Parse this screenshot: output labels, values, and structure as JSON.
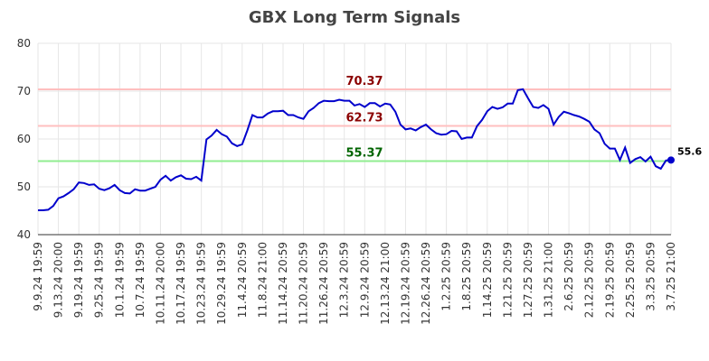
{
  "chart_data": {
    "type": "line",
    "title": "GBX Long Term Signals",
    "categories": [
      "9.9.24 19:59",
      null,
      null,
      null,
      "9.13.24 20:00",
      null,
      null,
      null,
      "9.19.24 19:59",
      null,
      null,
      null,
      "9.25.24 19:59",
      null,
      null,
      null,
      "10.1.24 19:59",
      null,
      null,
      null,
      "10.7.24 19:59",
      null,
      null,
      null,
      "10.11.24 20:00",
      null,
      null,
      null,
      "10.17.24 19:59",
      null,
      null,
      null,
      "10.23.24 19:59",
      null,
      null,
      null,
      "10.29.24 19:59",
      null,
      null,
      null,
      "11.4.24 20:59",
      null,
      null,
      null,
      "11.8.24 21:00",
      null,
      null,
      null,
      "11.14.24 20:59",
      null,
      null,
      null,
      "11.20.24 20:59",
      null,
      null,
      null,
      "11.26.24 20:59",
      null,
      null,
      null,
      "12.3.24 20:59",
      null,
      null,
      null,
      "12.9.24 20:59",
      null,
      null,
      null,
      "12.13.24 21:00",
      null,
      null,
      null,
      "12.19.24 20:59",
      null,
      null,
      null,
      "12.26.24 20:59",
      null,
      null,
      null,
      "1.2.25 20:59",
      null,
      null,
      null,
      "1.8.25 20:59",
      null,
      null,
      null,
      "1.14.25 20:59",
      null,
      null,
      null,
      "1.21.25 20:59",
      null,
      null,
      null,
      "1.27.25 20:59",
      null,
      null,
      null,
      "1.31.25 21:00",
      null,
      null,
      null,
      "2.6.25 20:59",
      null,
      null,
      null,
      "2.12.25 20:59",
      null,
      null,
      null,
      "2.19.25 20:59",
      null,
      null,
      null,
      "2.25.25 20:59",
      null,
      null,
      null,
      "3.3.25 20:59",
      null,
      null,
      null,
      "3.7.25 21:00"
    ],
    "series": [
      {
        "color": "#0000cc",
        "values": [
          45.1,
          45.1,
          45.2,
          46.0,
          47.6,
          48.0,
          48.7,
          49.5,
          50.9,
          50.8,
          50.4,
          50.5,
          49.6,
          49.3,
          49.7,
          50.4,
          49.3,
          48.7,
          48.6,
          49.5,
          49.2,
          49.2,
          49.6,
          50.0,
          51.5,
          52.3,
          51.3,
          52.0,
          52.4,
          51.7,
          51.6,
          52.1,
          51.3,
          59.9,
          60.7,
          61.9,
          61.0,
          60.5,
          59.1,
          58.5,
          58.9,
          61.8,
          65.0,
          64.5,
          64.5,
          65.3,
          65.8,
          65.8,
          65.9,
          65.0,
          65.0,
          64.5,
          64.2,
          65.8,
          66.5,
          67.5,
          68.0,
          67.9,
          67.9,
          68.2,
          68.0,
          68.0,
          67.0,
          67.3,
          66.7,
          67.5,
          67.5,
          66.8,
          67.4,
          67.2,
          65.7,
          63.0,
          62.0,
          62.2,
          61.8,
          62.5,
          63.0,
          62.0,
          61.2,
          60.9,
          61.0,
          61.7,
          61.6,
          60.0,
          60.3,
          60.3,
          62.7,
          64.0,
          65.8,
          66.7,
          66.3,
          66.6,
          67.4,
          67.4,
          70.2,
          70.4,
          68.5,
          66.7,
          66.5,
          67.1,
          66.3,
          63.0,
          64.6,
          65.7,
          65.4,
          65.0,
          64.7,
          64.2,
          63.6,
          62.0,
          61.2,
          59.0,
          58.0,
          58.0,
          55.6,
          58.2,
          55.0,
          55.8,
          56.2,
          55.3,
          56.3,
          54.3,
          53.8,
          55.5,
          55.6
        ]
      }
    ],
    "reference_lines": [
      {
        "value": 70.37,
        "color": "#ffbfbf",
        "text_color": "#8b0000"
      },
      {
        "value": 62.73,
        "color": "#ffbfbf",
        "text_color": "#8b0000"
      },
      {
        "value": 55.37,
        "color": "#90ee90",
        "text_color": "#006400"
      }
    ],
    "ylim": [
      40,
      80
    ],
    "yticks": [
      40,
      50,
      60,
      70,
      80
    ],
    "grid": true
  }
}
